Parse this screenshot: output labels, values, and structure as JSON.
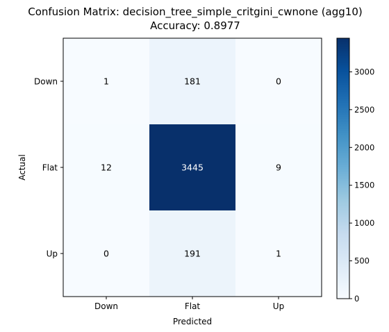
{
  "chart_data": {
    "type": "heatmap",
    "title": "Confusion Matrix: decision_tree_simple_critgini_cwnone (agg10)",
    "subtitle": "Accuracy: 0.8977",
    "xlabel": "Predicted",
    "ylabel": "Actual",
    "x_categories": [
      "Down",
      "Flat",
      "Up"
    ],
    "y_categories": [
      "Down",
      "Flat",
      "Up"
    ],
    "values": [
      [
        1,
        181,
        0
      ],
      [
        12,
        3445,
        9
      ],
      [
        0,
        191,
        1
      ]
    ],
    "colorbar": {
      "range": [
        0,
        3445
      ],
      "ticks": [
        0,
        500,
        1000,
        1500,
        2000,
        2500,
        3000
      ],
      "tick_labels": [
        "0",
        "500",
        "1000",
        "1500",
        "2000",
        "2500",
        "3000"
      ],
      "colormap": "Blues"
    },
    "colors": {
      "low": "#f7fbff",
      "high": "#08306b",
      "text_on_dark": "#ffffff",
      "text_on_light": "#000000"
    }
  }
}
